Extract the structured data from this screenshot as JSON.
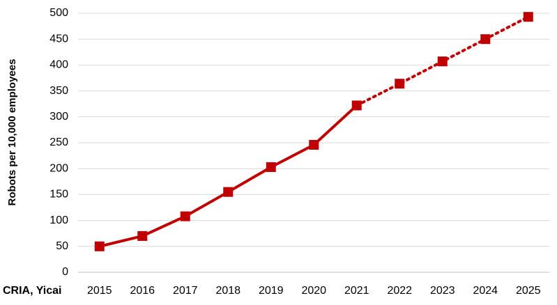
{
  "chart_data": {
    "type": "line",
    "y_label": "Robots per 10,000 employees",
    "source": "CRIA, Yicai",
    "categories": [
      "2015",
      "2016",
      "2017",
      "2018",
      "2019",
      "2020",
      "2021",
      "2022",
      "2023",
      "2024",
      "2025"
    ],
    "series": [
      {
        "color": "#c00000",
        "values": [
          50,
          70,
          108,
          155,
          203,
          246,
          322,
          364,
          407,
          450,
          493
        ]
      }
    ],
    "dotted_from_index": 6,
    "ylim": [
      0,
      500
    ],
    "yticks": [
      0,
      50,
      100,
      150,
      200,
      250,
      300,
      350,
      400,
      450,
      500
    ],
    "grid": true
  }
}
